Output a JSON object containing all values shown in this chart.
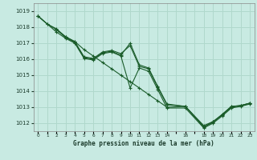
{
  "xlabel": "Graphe pression niveau de la mer (hPa)",
  "ylim": [
    1011.5,
    1019.5
  ],
  "xlim": [
    -0.5,
    23.5
  ],
  "yticks": [
    1012,
    1013,
    1014,
    1015,
    1016,
    1017,
    1018,
    1019
  ],
  "xtick_labels": [
    "0",
    "1",
    "2",
    "3",
    "4",
    "5",
    "6",
    "7",
    "8",
    "9",
    "10",
    "11",
    "12",
    "13",
    "14",
    "",
    "16",
    "",
    "18",
    "19",
    "20",
    "21",
    "22",
    "23"
  ],
  "bg_color": "#c8eae2",
  "grid_color": "#b0d8cc",
  "line_color": "#1a5c2a",
  "series": [
    {
      "x": [
        0,
        1,
        2,
        3,
        4,
        5,
        6,
        7,
        8,
        9,
        10,
        11,
        12,
        13,
        14,
        16,
        18,
        19,
        20,
        21,
        22,
        23
      ],
      "y": [
        1018.7,
        1018.2,
        1017.85,
        1017.4,
        1017.1,
        1016.6,
        1016.2,
        1015.8,
        1015.4,
        1015.0,
        1014.6,
        1014.2,
        1013.8,
        1013.4,
        1013.0,
        1013.05,
        1011.75,
        1012.1,
        1012.5,
        1013.0,
        1013.1,
        1013.25
      ]
    },
    {
      "x": [
        0,
        1,
        2,
        3,
        4,
        5,
        6,
        7,
        8,
        9,
        10,
        11,
        12,
        13,
        14,
        16,
        18,
        19,
        20,
        21,
        22,
        23
      ],
      "y": [
        1018.7,
        1018.2,
        1017.9,
        1017.4,
        1017.1,
        1016.15,
        1016.05,
        1016.45,
        1016.55,
        1016.35,
        1016.85,
        1015.55,
        1015.4,
        1014.25,
        1013.15,
        1013.05,
        1011.85,
        1012.1,
        1012.55,
        1013.05,
        1013.1,
        1013.25
      ]
    },
    {
      "x": [
        2,
        3,
        4,
        5,
        6,
        7,
        8,
        9,
        10,
        11,
        12,
        13,
        14,
        16,
        18,
        19,
        20,
        21,
        22,
        23
      ],
      "y": [
        1017.85,
        1017.35,
        1017.05,
        1016.1,
        1016.0,
        1016.4,
        1016.5,
        1016.25,
        1017.0,
        1015.65,
        1015.45,
        1014.3,
        1013.2,
        1013.05,
        1011.78,
        1012.05,
        1012.55,
        1013.05,
        1013.1,
        1013.25
      ]
    },
    {
      "x": [
        0,
        2,
        3,
        4,
        5,
        6,
        7,
        8,
        9,
        10,
        11,
        12,
        13,
        14,
        16,
        18,
        19,
        20,
        21,
        22,
        23
      ],
      "y": [
        1018.7,
        1017.7,
        1017.3,
        1017.0,
        1016.05,
        1015.95,
        1016.35,
        1016.45,
        1016.2,
        1014.2,
        1015.45,
        1015.25,
        1014.1,
        1012.95,
        1012.95,
        1011.7,
        1012.0,
        1012.45,
        1012.95,
        1013.05,
        1013.2
      ]
    }
  ]
}
